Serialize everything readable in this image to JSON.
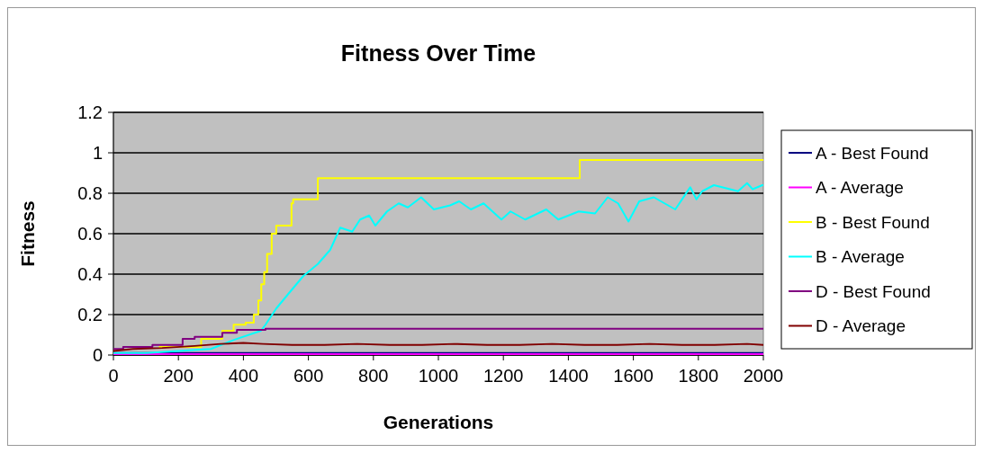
{
  "chart_data": {
    "type": "line",
    "title": "Fitness Over Time",
    "xlabel": "Generations",
    "ylabel": "Fitness",
    "xlim": [
      0,
      2000
    ],
    "xticks": [
      0,
      200,
      400,
      600,
      800,
      1000,
      1200,
      1400,
      1600,
      1800,
      2000
    ],
    "ylim": [
      0,
      1.2
    ],
    "yticks": [
      0,
      0.2,
      0.4,
      0.6,
      0.8,
      1,
      1.2
    ],
    "grid": "y",
    "legend": "right",
    "marker": "none",
    "series": [
      {
        "name": "A - Best Found",
        "type": "step",
        "color": "#000080",
        "x": [
          0,
          2000
        ],
        "values": [
          0.01,
          0.01
        ]
      },
      {
        "name": "A - Average",
        "color": "#ff00ff",
        "x": [
          0,
          2000
        ],
        "values": [
          0.005,
          0.005
        ]
      },
      {
        "name": "B - Best Found",
        "type": "step",
        "color": "#ffff00",
        "x": [
          140,
          270,
          335,
          370,
          407,
          432,
          446,
          455,
          464,
          473,
          487,
          501,
          548,
          553,
          629,
          1435,
          2000
        ],
        "values": [
          0.04,
          0.08,
          0.12,
          0.15,
          0.16,
          0.2,
          0.27,
          0.35,
          0.41,
          0.5,
          0.6,
          0.64,
          0.75,
          0.77,
          0.875,
          0.965,
          0.965
        ]
      },
      {
        "name": "B - Average",
        "color": "#00ffff",
        "x": [
          0,
          100,
          200,
          300,
          371,
          454,
          468,
          501,
          537,
          584,
          629,
          667,
          698,
          735,
          759,
          787,
          806,
          842,
          878,
          906,
          947,
          986,
          1036,
          1064,
          1100,
          1139,
          1194,
          1222,
          1267,
          1332,
          1369,
          1432,
          1482,
          1521,
          1553,
          1585,
          1618,
          1663,
          1729,
          1775,
          1794,
          1812,
          1848,
          1922,
          1950,
          1967,
          1997,
          2000
        ],
        "values": [
          0.01,
          0.01,
          0.02,
          0.03,
          0.075,
          0.12,
          0.15,
          0.23,
          0.3,
          0.39,
          0.45,
          0.52,
          0.63,
          0.61,
          0.67,
          0.69,
          0.64,
          0.71,
          0.75,
          0.73,
          0.78,
          0.72,
          0.74,
          0.76,
          0.72,
          0.75,
          0.67,
          0.71,
          0.67,
          0.72,
          0.67,
          0.71,
          0.7,
          0.78,
          0.75,
          0.66,
          0.76,
          0.78,
          0.72,
          0.83,
          0.77,
          0.81,
          0.84,
          0.81,
          0.85,
          0.82,
          0.84,
          0.84
        ]
      },
      {
        "name": "D - Best Found",
        "type": "step",
        "color": "#800080",
        "x": [
          0,
          30,
          120,
          213,
          250,
          335,
          380,
          468,
          2000
        ],
        "values": [
          0.03,
          0.04,
          0.05,
          0.08,
          0.09,
          0.11,
          0.125,
          0.13,
          0.13
        ]
      },
      {
        "name": "D - Average",
        "color": "#800000",
        "x": [
          0,
          60,
          150,
          250,
          330,
          400,
          460,
          550,
          650,
          750,
          850,
          950,
          1050,
          1150,
          1250,
          1350,
          1450,
          1550,
          1650,
          1750,
          1850,
          1950,
          2000
        ],
        "values": [
          0.02,
          0.03,
          0.035,
          0.045,
          0.055,
          0.06,
          0.055,
          0.05,
          0.05,
          0.055,
          0.05,
          0.05,
          0.055,
          0.05,
          0.05,
          0.055,
          0.05,
          0.05,
          0.055,
          0.05,
          0.05,
          0.055,
          0.05
        ]
      }
    ]
  }
}
